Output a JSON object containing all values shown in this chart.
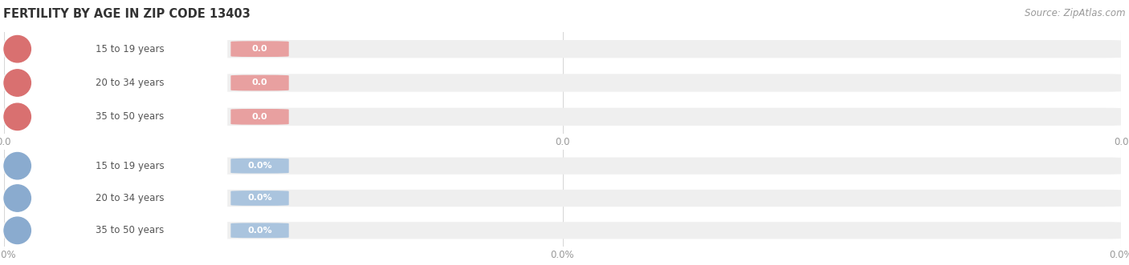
{
  "title": "FERTILITY BY AGE IN ZIP CODE 13403",
  "source_text": "Source: ZipAtlas.com",
  "top_section": {
    "categories": [
      "15 to 19 years",
      "20 to 34 years",
      "35 to 50 years"
    ],
    "values": [
      0.0,
      0.0,
      0.0
    ],
    "bar_bg_color": "#efefef",
    "bar_body_color": "#ffffff",
    "badge_color": "#e8a0a0",
    "circle_color": "#d97070",
    "label_color": "#555555",
    "value_color": "#ffffff",
    "tick_label": "0.0"
  },
  "bottom_section": {
    "categories": [
      "15 to 19 years",
      "20 to 34 years",
      "35 to 50 years"
    ],
    "values": [
      0.0,
      0.0,
      0.0
    ],
    "bar_bg_color": "#efefef",
    "bar_body_color": "#ffffff",
    "badge_color": "#aac4de",
    "circle_color": "#8aabcf",
    "label_color": "#555555",
    "value_color": "#ffffff",
    "tick_label": "0.0%"
  },
  "background_color": "#ffffff",
  "grid_color": "#d8d8d8",
  "title_fontsize": 10.5,
  "label_fontsize": 8.5,
  "tick_fontsize": 8.5,
  "source_fontsize": 8.5
}
